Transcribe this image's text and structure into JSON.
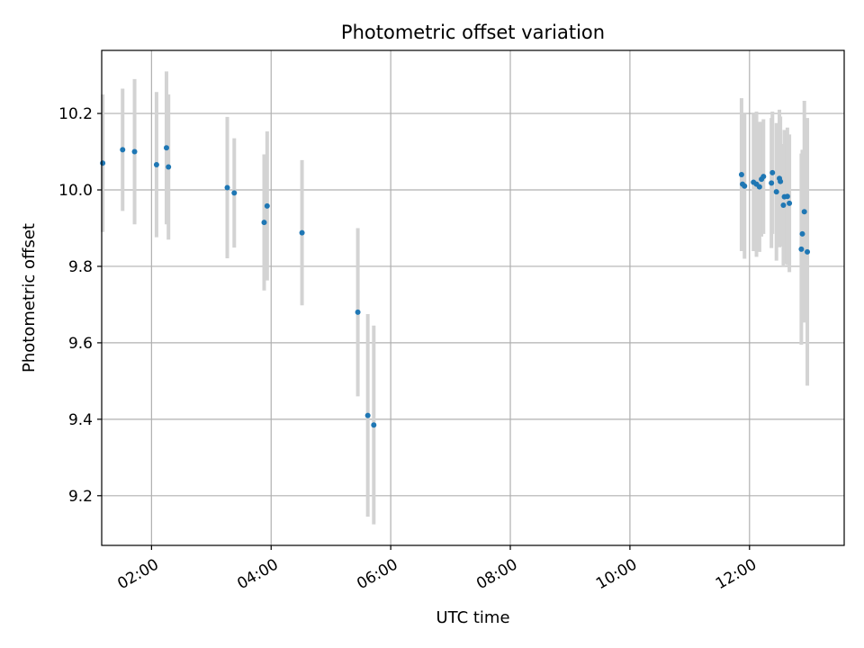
{
  "chart_data": {
    "type": "scatter",
    "title": "Photometric offset variation",
    "xlabel": "UTC time",
    "ylabel": "Photometric offset",
    "x_unit": "UTC time (hours)",
    "xlim": [
      "01:10",
      "13:35"
    ],
    "ylim": [
      9.07,
      10.365
    ],
    "x_ticks": [
      "02:00",
      "04:00",
      "06:00",
      "08:00",
      "10:00",
      "12:00"
    ],
    "y_ticks": [
      "9.2",
      "9.4",
      "9.6",
      "9.8",
      "10.0",
      "10.2"
    ],
    "grid": true,
    "legend": "none",
    "point_color": "#1f77b4",
    "errorbar_color": "#d3d3d3",
    "points": [
      {
        "x": "01:11",
        "y": 10.07,
        "err": 0.18
      },
      {
        "x": "01:31",
        "y": 10.105,
        "err": 0.16
      },
      {
        "x": "01:43",
        "y": 10.1,
        "err": 0.19
      },
      {
        "x": "02:05",
        "y": 10.066,
        "err": 0.19
      },
      {
        "x": "02:15",
        "y": 10.11,
        "err": 0.2
      },
      {
        "x": "02:17",
        "y": 10.06,
        "err": 0.19
      },
      {
        "x": "03:16",
        "y": 10.006,
        "err": 0.185
      },
      {
        "x": "03:23",
        "y": 9.992,
        "err": 0.143
      },
      {
        "x": "03:53",
        "y": 9.915,
        "err": 0.178
      },
      {
        "x": "03:56",
        "y": 9.958,
        "err": 0.195
      },
      {
        "x": "04:31",
        "y": 9.888,
        "err": 0.19
      },
      {
        "x": "05:27",
        "y": 9.68,
        "err": 0.22
      },
      {
        "x": "05:37",
        "y": 9.41,
        "err": 0.265
      },
      {
        "x": "05:43",
        "y": 9.385,
        "err": 0.26
      },
      {
        "x": "11:52",
        "y": 10.04,
        "err": 0.2
      },
      {
        "x": "11:53",
        "y": 10.015,
        "err": 0.17
      },
      {
        "x": "11:55",
        "y": 10.01,
        "err": 0.19
      },
      {
        "x": "12:04",
        "y": 10.02,
        "err": 0.18
      },
      {
        "x": "12:07",
        "y": 10.015,
        "err": 0.19
      },
      {
        "x": "12:10",
        "y": 10.008,
        "err": 0.17
      },
      {
        "x": "12:12",
        "y": 10.028,
        "err": 0.15
      },
      {
        "x": "12:14",
        "y": 10.035,
        "err": 0.15
      },
      {
        "x": "12:22",
        "y": 10.018,
        "err": 0.17
      },
      {
        "x": "12:23",
        "y": 10.045,
        "err": 0.16
      },
      {
        "x": "12:27",
        "y": 9.995,
        "err": 0.18
      },
      {
        "x": "12:30",
        "y": 10.03,
        "err": 0.18
      },
      {
        "x": "12:31",
        "y": 10.022,
        "err": 0.17
      },
      {
        "x": "12:34",
        "y": 9.96,
        "err": 0.16
      },
      {
        "x": "12:35",
        "y": 9.982,
        "err": 0.175
      },
      {
        "x": "12:38",
        "y": 9.983,
        "err": 0.18
      },
      {
        "x": "12:40",
        "y": 9.965,
        "err": 0.18
      },
      {
        "x": "12:52",
        "y": 9.845,
        "err": 0.25
      },
      {
        "x": "12:53",
        "y": 9.885,
        "err": 0.22
      },
      {
        "x": "12:55",
        "y": 9.943,
        "err": 0.29
      },
      {
        "x": "12:58",
        "y": 9.838,
        "err": 0.35
      }
    ]
  }
}
